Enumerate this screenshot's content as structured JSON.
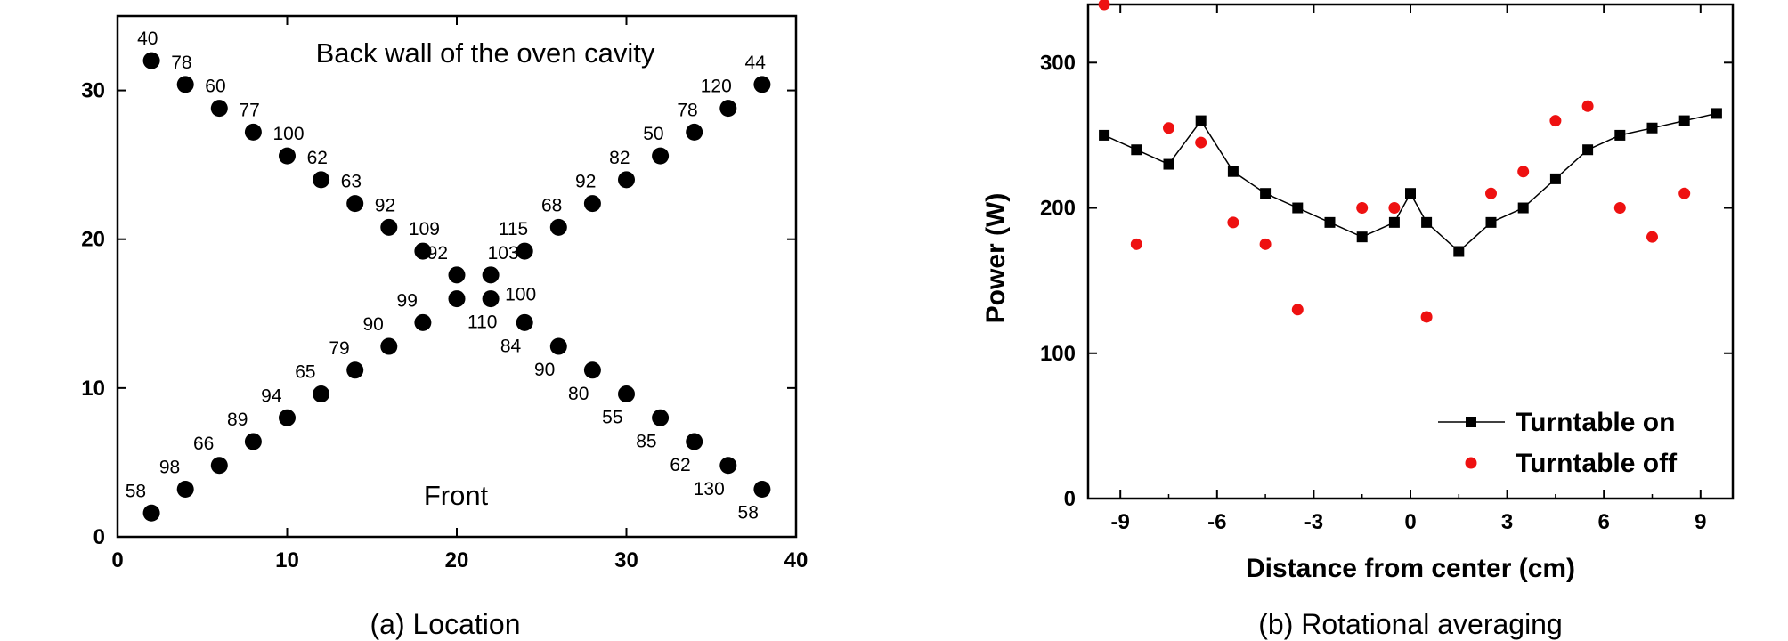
{
  "chart_data": [
    {
      "type": "scatter",
      "caption": "(a) Location",
      "xlim": [
        0,
        40
      ],
      "ylim": [
        0,
        35
      ],
      "x_ticks": [
        0,
        10,
        20,
        30,
        40
      ],
      "y_ticks": [
        0,
        10,
        20,
        30
      ],
      "annotations": [
        "Back wall of the oven cavity",
        "Front"
      ],
      "points": [
        {
          "x": 2,
          "y": 32.0,
          "label": "40"
        },
        {
          "x": 4,
          "y": 30.4,
          "label": "78"
        },
        {
          "x": 6,
          "y": 28.8,
          "label": "60"
        },
        {
          "x": 8,
          "y": 27.2,
          "label": "77"
        },
        {
          "x": 10,
          "y": 25.6,
          "label": "100"
        },
        {
          "x": 12,
          "y": 24.0,
          "label": "62"
        },
        {
          "x": 14,
          "y": 22.4,
          "label": "63"
        },
        {
          "x": 16,
          "y": 20.8,
          "label": "92"
        },
        {
          "x": 18,
          "y": 19.2,
          "label": "109"
        },
        {
          "x": 20,
          "y": 17.6,
          "label": "92"
        },
        {
          "x": 22,
          "y": 17.6,
          "label": "103"
        },
        {
          "x": 24,
          "y": 19.2,
          "label": "115"
        },
        {
          "x": 26,
          "y": 20.8,
          "label": "68"
        },
        {
          "x": 28,
          "y": 22.4,
          "label": "92"
        },
        {
          "x": 30,
          "y": 24.0,
          "label": "82"
        },
        {
          "x": 32,
          "y": 25.6,
          "label": "50"
        },
        {
          "x": 34,
          "y": 27.2,
          "label": "78"
        },
        {
          "x": 36,
          "y": 28.8,
          "label": "120"
        },
        {
          "x": 38,
          "y": 30.4,
          "label": "44"
        },
        {
          "x": 2,
          "y": 1.6,
          "label": "58"
        },
        {
          "x": 4,
          "y": 3.2,
          "label": "98"
        },
        {
          "x": 6,
          "y": 4.8,
          "label": "66"
        },
        {
          "x": 8,
          "y": 6.4,
          "label": "89"
        },
        {
          "x": 10,
          "y": 8.0,
          "label": "94"
        },
        {
          "x": 12,
          "y": 9.6,
          "label": "65"
        },
        {
          "x": 14,
          "y": 11.2,
          "label": "79"
        },
        {
          "x": 16,
          "y": 12.8,
          "label": "90"
        },
        {
          "x": 18,
          "y": 14.4,
          "label": "99"
        },
        {
          "x": 20,
          "y": 16.0,
          "label": "110"
        },
        {
          "x": 22,
          "y": 16.0,
          "label": "100"
        },
        {
          "x": 24,
          "y": 14.4,
          "label": "84"
        },
        {
          "x": 26,
          "y": 12.8,
          "label": "90"
        },
        {
          "x": 28,
          "y": 11.2,
          "label": "80"
        },
        {
          "x": 30,
          "y": 9.6,
          "label": "55"
        },
        {
          "x": 32,
          "y": 8.0,
          "label": "85"
        },
        {
          "x": 34,
          "y": 6.4,
          "label": "62"
        },
        {
          "x": 36,
          "y": 4.8,
          "label": "130"
        },
        {
          "x": 38,
          "y": 3.2,
          "label": "58"
        }
      ]
    },
    {
      "type": "line",
      "caption": "(b) Rotational averaging",
      "xlabel": "Distance from center (cm)",
      "ylabel": "Power (W)",
      "xlim": [
        -10,
        10
      ],
      "ylim": [
        0,
        340
      ],
      "x_ticks": [
        -9,
        -6,
        -3,
        0,
        3,
        6,
        9
      ],
      "y_ticks": [
        0,
        100,
        200,
        300
      ],
      "legend_position": "bottom-right",
      "series": [
        {
          "name": "Turntable on",
          "style": "line-square",
          "color": "#000000",
          "x": [
            -9.5,
            -8.5,
            -7.5,
            -6.5,
            -5.5,
            -4.5,
            -3.5,
            -2.5,
            -1.5,
            -0.5,
            0,
            0.5,
            1.5,
            2.5,
            3.5,
            4.5,
            5.5,
            6.5,
            7.5,
            8.5,
            9.5
          ],
          "y": [
            250,
            240,
            230,
            260,
            225,
            210,
            200,
            190,
            180,
            190,
            210,
            190,
            170,
            190,
            200,
            220,
            240,
            250,
            255,
            260,
            265
          ]
        },
        {
          "name": "Turntable off",
          "style": "dots",
          "color": "#ee1111",
          "x": [
            -9.5,
            -8.5,
            -7.5,
            -6.5,
            -5.5,
            -4.5,
            -3.5,
            -1.5,
            -0.5,
            0.5,
            2.5,
            3.5,
            4.5,
            5.5,
            6.5,
            7.5,
            8.5
          ],
          "y": [
            340,
            175,
            255,
            245,
            190,
            175,
            130,
            200,
            200,
            125,
            210,
            225,
            260,
            270,
            200,
            180,
            210
          ]
        }
      ]
    }
  ]
}
